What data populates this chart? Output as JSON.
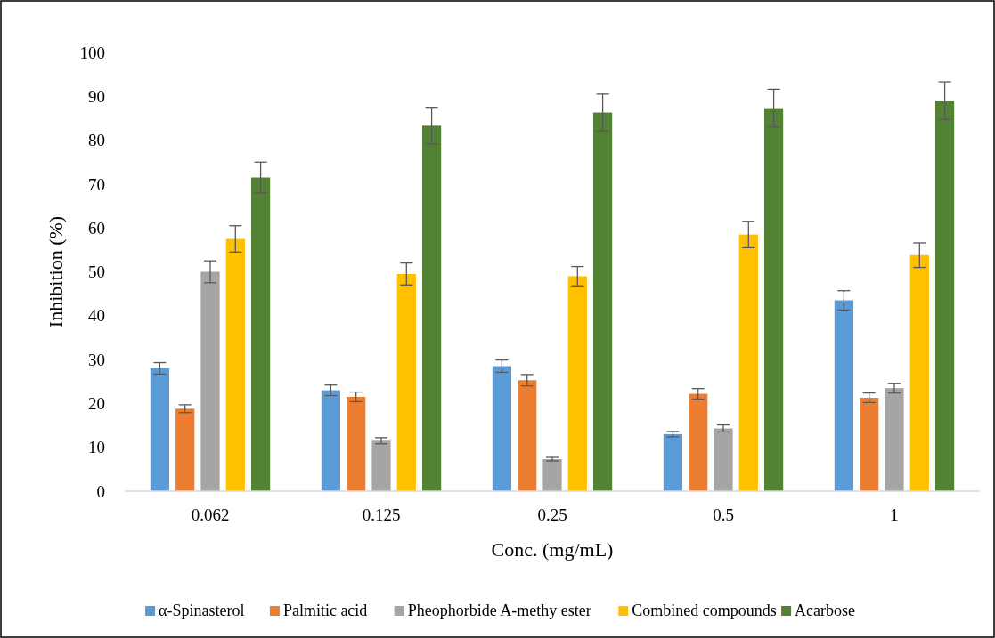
{
  "chart_data": {
    "type": "bar",
    "xlabel": "Conc. (mg/mL)",
    "ylabel": "Inhibition (%)",
    "categories": [
      "0.062",
      "0.125",
      "0.25",
      "0.5",
      "1"
    ],
    "series": [
      {
        "name": "α-Spinasterol",
        "color": "#5b9bd5",
        "values": [
          28,
          23,
          28.5,
          13,
          43.5
        ],
        "errors": [
          1.3,
          1.2,
          1.4,
          0.6,
          2.2
        ]
      },
      {
        "name": "Palmitic acid",
        "color": "#ed7d31",
        "values": [
          18.8,
          21.5,
          25.3,
          22.2,
          21.3
        ],
        "errors": [
          0.9,
          1.1,
          1.3,
          1.2,
          1.1
        ]
      },
      {
        "name": "Pheophorbide A-methy ester",
        "color": "#a5a5a5",
        "values": [
          50,
          11.5,
          7.3,
          14.3,
          23.5
        ],
        "errors": [
          2.5,
          0.7,
          0.4,
          0.8,
          1.1
        ]
      },
      {
        "name": "Combined compounds",
        "color": "#ffc000",
        "values": [
          57.5,
          49.5,
          49,
          58.5,
          53.8
        ],
        "errors": [
          3,
          2.5,
          2.2,
          3,
          2.8
        ]
      },
      {
        "name": "Acarbose",
        "color": "#548235",
        "values": [
          71.5,
          83.3,
          86.3,
          87.3,
          89
        ],
        "errors": [
          3.5,
          4.2,
          4.2,
          4.3,
          4.3
        ]
      }
    ],
    "ylim": [
      0,
      100
    ],
    "yticks": [
      0,
      10,
      20,
      30,
      40,
      50,
      60,
      70,
      80,
      90,
      100
    ],
    "grid": false,
    "legend": "bottom"
  }
}
